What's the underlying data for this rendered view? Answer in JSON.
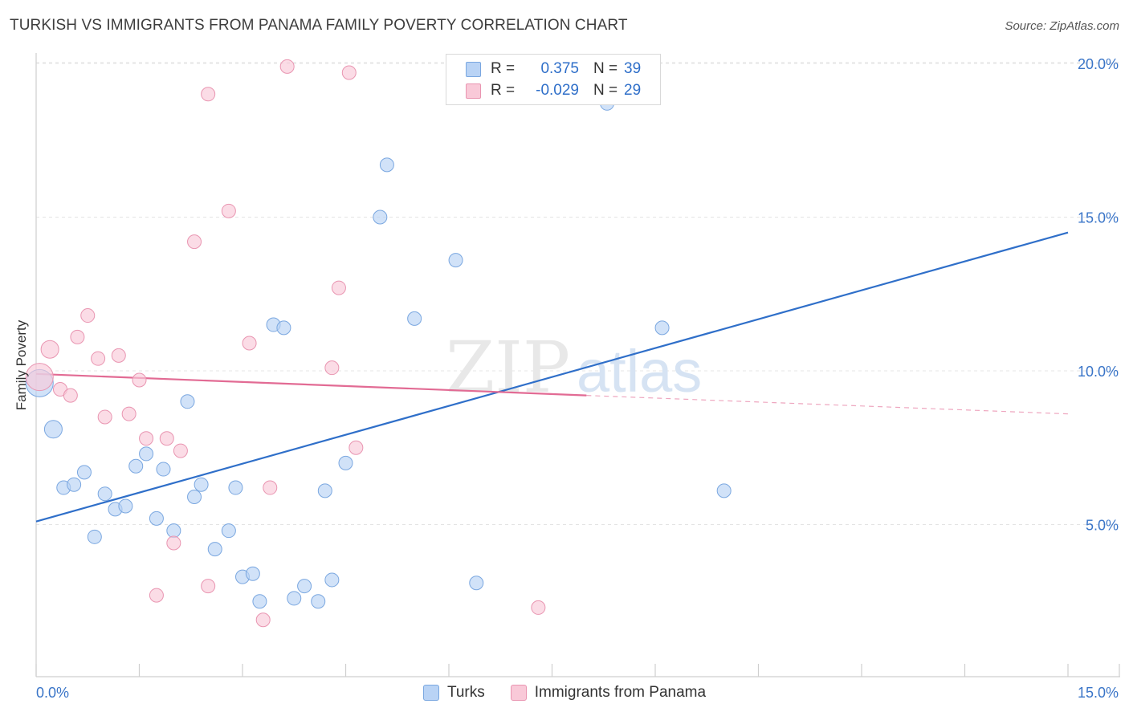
{
  "header": {
    "title": "TURKISH VS IMMIGRANTS FROM PANAMA FAMILY POVERTY CORRELATION CHART",
    "source": "Source: ZipAtlas.com"
  },
  "watermark": {
    "zip": "ZIP",
    "atlas": "atlas"
  },
  "legend": {
    "rows": [
      {
        "r_label": "R =",
        "r_value": "0.375",
        "n_label": "N =",
        "n_value": "39",
        "color": "#b9d3f5",
        "border": "#7aa7e0"
      },
      {
        "r_label": "R =",
        "r_value": "-0.029",
        "n_label": "N =",
        "n_value": "29",
        "color": "#f9c9d8",
        "border": "#e995b1"
      }
    ]
  },
  "bottom_legend": [
    {
      "label": "Turks",
      "color": "#b9d3f5",
      "border": "#7aa7e0"
    },
    {
      "label": "Immigrants from Panama",
      "color": "#f9c9d8",
      "border": "#e995b1"
    }
  ],
  "chart_data": {
    "type": "scatter",
    "title": "TURKISH VS IMMIGRANTS FROM PANAMA FAMILY POVERTY CORRELATION CHART",
    "xlabel": "",
    "ylabel": "Family Poverty",
    "xlim": [
      0,
      15
    ],
    "ylim": [
      0,
      20.5
    ],
    "x_tick_labels": [
      "0.0%",
      "15.0%"
    ],
    "y_ticks": [
      5,
      10,
      15,
      20
    ],
    "y_tick_labels": [
      "5.0%",
      "10.0%",
      "15.0%",
      "20.0%"
    ],
    "grid": true,
    "colors": {
      "turks": "#2f6fc9",
      "panama": "#e26b94"
    },
    "series": [
      {
        "name": "Turks",
        "fill": "#b9d3f5",
        "stroke": "#7aa7e0",
        "points": [
          [
            0.05,
            9.6,
            3
          ],
          [
            0.25,
            8.1,
            2
          ],
          [
            0.4,
            6.2,
            1
          ],
          [
            0.55,
            6.3,
            1
          ],
          [
            0.7,
            6.7,
            1
          ],
          [
            0.85,
            4.6,
            1
          ],
          [
            1.0,
            6.0,
            1
          ],
          [
            1.15,
            5.5,
            1
          ],
          [
            1.3,
            5.6,
            1
          ],
          [
            1.45,
            6.9,
            1
          ],
          [
            1.6,
            7.3,
            1
          ],
          [
            1.75,
            5.2,
            1
          ],
          [
            1.85,
            6.8,
            1
          ],
          [
            2.0,
            4.8,
            1
          ],
          [
            2.2,
            9.0,
            1
          ],
          [
            2.3,
            5.9,
            1
          ],
          [
            2.4,
            6.3,
            1
          ],
          [
            2.6,
            4.2,
            1
          ],
          [
            2.8,
            4.8,
            1
          ],
          [
            2.9,
            6.2,
            1
          ],
          [
            3.0,
            3.3,
            1
          ],
          [
            3.15,
            3.4,
            1
          ],
          [
            3.25,
            2.5,
            1
          ],
          [
            3.45,
            11.5,
            1
          ],
          [
            3.6,
            11.4,
            1
          ],
          [
            3.75,
            2.6,
            1
          ],
          [
            3.9,
            3.0,
            1
          ],
          [
            4.1,
            2.5,
            1
          ],
          [
            4.2,
            6.1,
            1
          ],
          [
            4.3,
            3.2,
            1
          ],
          [
            4.5,
            7.0,
            1
          ],
          [
            5.0,
            15.0,
            1
          ],
          [
            5.1,
            16.7,
            1
          ],
          [
            5.5,
            11.7,
            1
          ],
          [
            6.1,
            13.6,
            1
          ],
          [
            6.4,
            3.1,
            1
          ],
          [
            8.3,
            18.7,
            1
          ],
          [
            9.1,
            11.4,
            1
          ],
          [
            10.0,
            6.1,
            1
          ]
        ],
        "trend": {
          "x": [
            0,
            15
          ],
          "y": [
            5.1,
            14.5
          ],
          "style": "solid"
        }
      },
      {
        "name": "Immigrants from Panama",
        "fill": "#f9c9d8",
        "stroke": "#e995b1",
        "points": [
          [
            0.05,
            9.8,
            3
          ],
          [
            0.2,
            10.7,
            2
          ],
          [
            0.35,
            9.4,
            1
          ],
          [
            0.5,
            9.2,
            1
          ],
          [
            0.6,
            11.1,
            1
          ],
          [
            0.75,
            11.8,
            1
          ],
          [
            0.9,
            10.4,
            1
          ],
          [
            1.0,
            8.5,
            1
          ],
          [
            1.2,
            10.5,
            1
          ],
          [
            1.35,
            8.6,
            1
          ],
          [
            1.5,
            9.7,
            1
          ],
          [
            1.6,
            7.8,
            1
          ],
          [
            1.75,
            2.7,
            1
          ],
          [
            1.9,
            7.8,
            1
          ],
          [
            2.0,
            4.4,
            1
          ],
          [
            2.1,
            7.4,
            1
          ],
          [
            2.3,
            14.2,
            1
          ],
          [
            2.5,
            19.0,
            1
          ],
          [
            2.5,
            3.0,
            1
          ],
          [
            2.8,
            15.2,
            1
          ],
          [
            3.1,
            10.9,
            1
          ],
          [
            3.3,
            1.9,
            1
          ],
          [
            3.4,
            6.2,
            1
          ],
          [
            3.65,
            19.9,
            1
          ],
          [
            4.3,
            10.1,
            1
          ],
          [
            4.4,
            12.7,
            1
          ],
          [
            4.55,
            19.7,
            1
          ],
          [
            4.65,
            7.5,
            1
          ],
          [
            7.3,
            2.3,
            1
          ]
        ],
        "trend": {
          "x": [
            0,
            8.0
          ],
          "y": [
            9.9,
            9.2
          ],
          "style": "solid",
          "extension": {
            "x": [
              8.0,
              15
            ],
            "y": [
              9.2,
              8.6
            ],
            "style": "dashed"
          }
        }
      }
    ]
  }
}
